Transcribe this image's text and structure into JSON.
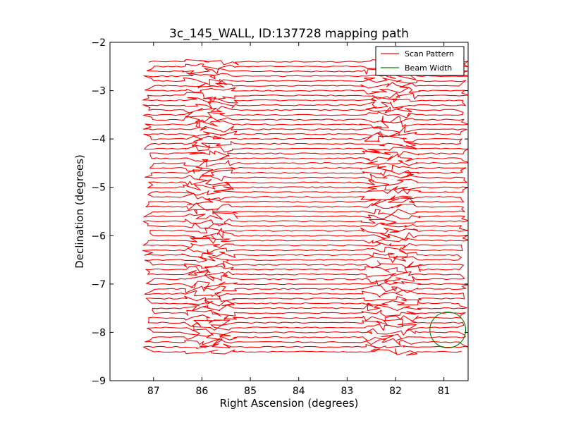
{
  "chart_data": {
    "type": "line",
    "title": "3c_145_WALL, ID:137728 mapping path",
    "xlabel": "Right Ascension (degrees)",
    "ylabel": "Declination (degrees)",
    "xlim": [
      87.9,
      80.5
    ],
    "ylim": [
      -9,
      -2
    ],
    "x_inverted": true,
    "xticks": [
      87,
      86,
      85,
      84,
      83,
      82,
      81
    ],
    "xtick_labels": [
      "87",
      "86",
      "85",
      "84",
      "83",
      "82",
      "81"
    ],
    "yticks": [
      -9,
      -8,
      -7,
      -6,
      -5,
      -4,
      -3,
      -2
    ],
    "ytick_labels": [
      "−9",
      "−8",
      "−7",
      "−6",
      "−5",
      "−4",
      "−3",
      "−2"
    ],
    "legend_position": "top-right",
    "series": [
      {
        "name": "Scan Pattern",
        "color": "#ff0000",
        "pattern": "raster",
        "ra_range": [
          87.1,
          80.6
        ],
        "dec_range": [
          -8.4,
          -2.4
        ],
        "row_count": 61,
        "turnaround_regions_ra": [
          [
            86.3,
            85.4
          ],
          [
            82.6,
            81.6
          ]
        ]
      },
      {
        "name": "Beam Width",
        "color": "#008000",
        "shape": "circle",
        "center": [
          80.92,
          -7.95
        ],
        "radius_deg": 0.37
      }
    ]
  }
}
